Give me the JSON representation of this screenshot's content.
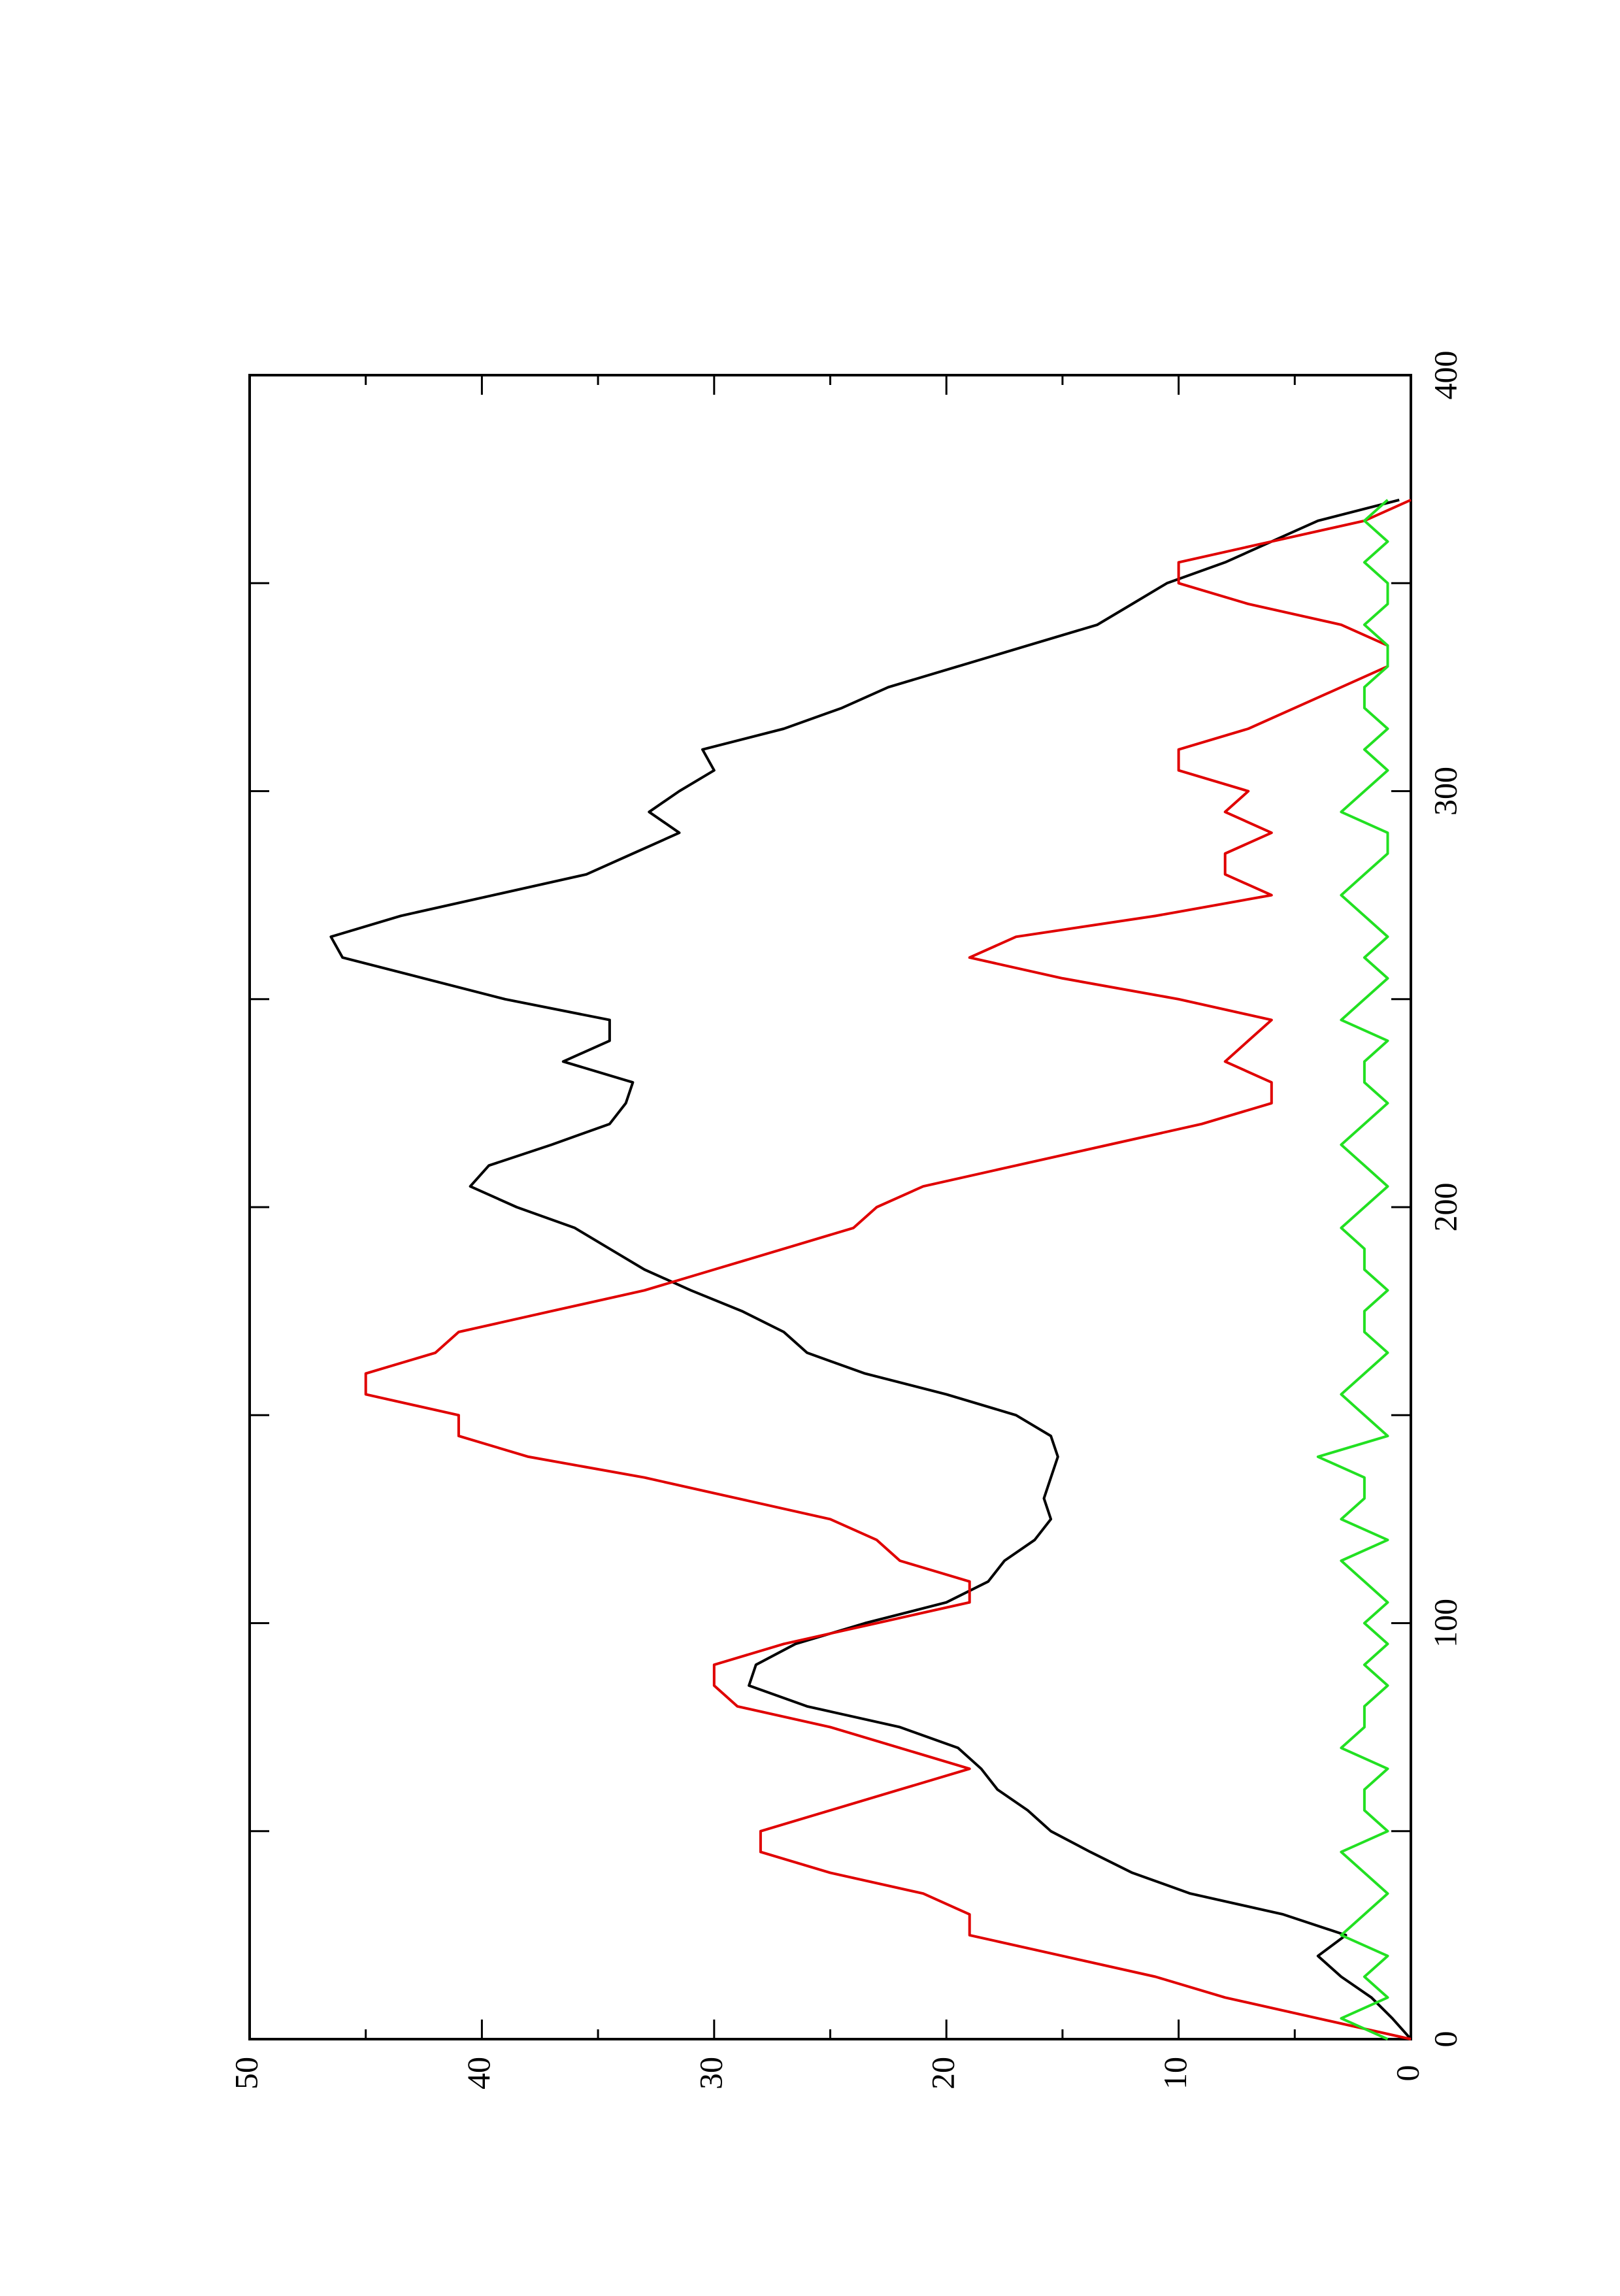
{
  "chart_data": {
    "type": "line",
    "x": [
      0,
      5,
      10,
      15,
      20,
      25,
      30,
      35,
      40,
      45,
      50,
      55,
      60,
      65,
      70,
      75,
      80,
      85,
      90,
      95,
      100,
      105,
      110,
      115,
      120,
      125,
      130,
      135,
      140,
      145,
      150,
      155,
      160,
      165,
      170,
      175,
      180,
      185,
      190,
      195,
      200,
      205,
      210,
      215,
      220,
      225,
      230,
      235,
      240,
      245,
      250,
      255,
      260,
      265,
      270,
      275,
      280,
      285,
      290,
      295,
      300,
      305,
      310,
      315,
      320,
      325,
      330,
      335,
      340,
      345,
      350,
      355,
      360,
      365,
      370
    ],
    "series": [
      {
        "color": "#000000",
        "values": [
          0,
          0.8,
          1.7,
          3,
          4,
          2.8,
          5.5,
          9.5,
          12,
          13.8,
          15.5,
          16.5,
          17.8,
          18.5,
          19.5,
          22,
          26,
          28.5,
          28.2,
          26.5,
          23.5,
          20,
          18.2,
          17.5,
          16.2,
          15.5,
          15.8,
          15.5,
          15.2,
          15.5,
          17,
          20,
          23.5,
          26,
          27,
          28.8,
          31,
          33,
          34.5,
          36,
          38.5,
          40.5,
          39.7,
          37,
          34.5,
          33.8,
          33.5,
          36.5,
          34.5,
          34.5,
          39,
          42.5,
          46,
          46.5,
          43.5,
          39.5,
          35.5,
          33.5,
          31.5,
          32.8,
          31.5,
          30,
          30.5,
          27,
          24.5,
          22.5,
          19.5,
          16.5,
          13.5,
          12,
          10.5,
          8,
          6,
          4,
          0.5
        ]
      },
      {
        "color": "#e00000",
        "values": [
          0,
          4,
          8,
          11,
          15,
          19,
          19,
          21,
          25,
          28,
          28,
          25,
          22,
          19,
          22,
          25,
          29,
          30,
          30,
          27,
          23,
          19,
          19,
          22,
          23,
          25,
          29,
          33,
          38,
          41,
          41,
          45,
          45,
          42,
          41,
          37,
          33,
          30,
          27,
          24,
          23,
          21,
          17,
          13,
          9,
          6,
          6,
          8,
          7,
          6,
          10,
          15,
          19,
          17,
          11,
          6,
          8,
          8,
          6,
          8,
          7,
          10,
          10,
          7,
          5,
          3,
          1,
          1,
          3,
          7,
          10,
          10,
          6,
          2,
          0
        ]
      },
      {
        "color": "#22e022",
        "values": [
          1,
          3,
          1,
          2,
          1,
          3,
          2,
          1,
          2,
          3,
          1,
          2,
          2,
          1,
          3,
          2,
          2,
          1,
          2,
          1,
          2,
          1,
          2,
          3,
          1,
          3,
          2,
          2,
          4,
          1,
          2,
          3,
          2,
          1,
          2,
          2,
          1,
          2,
          2,
          3,
          2,
          1,
          2,
          3,
          2,
          1,
          2,
          2,
          1,
          3,
          2,
          1,
          2,
          1,
          2,
          3,
          2,
          1,
          1,
          3,
          2,
          1,
          2,
          1,
          2,
          2,
          1,
          1,
          2,
          1,
          1,
          2,
          1,
          2,
          1
        ]
      }
    ],
    "xlim": [
      0,
      400
    ],
    "xticks": [
      0,
      100,
      200,
      300,
      400
    ],
    "xminorticks": [
      50,
      150,
      250,
      350
    ],
    "ylim": [
      0,
      50
    ],
    "yticks": [
      0,
      10,
      20,
      30,
      40,
      50
    ],
    "yminorticks": [
      5,
      15,
      25,
      35,
      45
    ]
  }
}
